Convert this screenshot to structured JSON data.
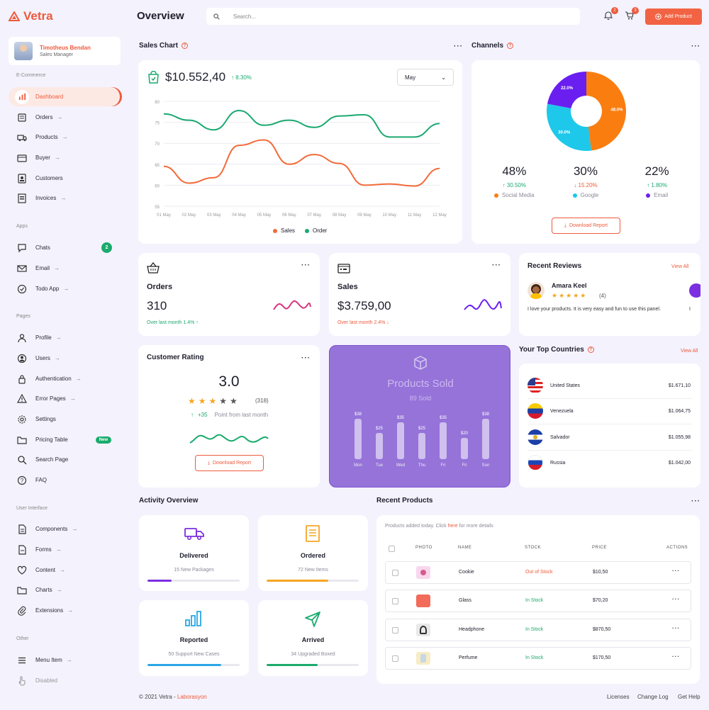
{
  "app": {
    "name": "Vetra"
  },
  "profile": {
    "name": "Timotheus Bendan",
    "role": "Sales Manager"
  },
  "sidebar": {
    "sections": [
      "E-Commerce",
      "Apps",
      "Pages",
      "User Interface",
      "Other"
    ],
    "ecommerce": [
      {
        "label": "Dashboard",
        "icon": "chart-bar-icon"
      },
      {
        "label": "Orders",
        "icon": "orders-icon"
      },
      {
        "label": "Products",
        "icon": "truck-icon"
      },
      {
        "label": "Buyer",
        "icon": "wallet-icon"
      },
      {
        "label": "Customers",
        "icon": "id-card-icon"
      },
      {
        "label": "Invoices",
        "icon": "invoice-icon"
      }
    ],
    "apps": [
      {
        "label": "Chats",
        "badge": "2"
      },
      {
        "label": "Email"
      },
      {
        "label": "Todo App"
      }
    ],
    "pages": [
      {
        "label": "Profile"
      },
      {
        "label": "Users"
      },
      {
        "label": "Authentication"
      },
      {
        "label": "Error Pages"
      },
      {
        "label": "Settings"
      },
      {
        "label": "Pricing Table",
        "badge": "New"
      },
      {
        "label": "Search Page"
      },
      {
        "label": "FAQ"
      }
    ],
    "ui": [
      {
        "label": "Components"
      },
      {
        "label": "Forms"
      },
      {
        "label": "Content"
      },
      {
        "label": "Charts"
      },
      {
        "label": "Extensions"
      }
    ],
    "other": [
      {
        "label": "Menu Item"
      },
      {
        "label": "Disabled"
      }
    ]
  },
  "header": {
    "title": "Overview",
    "search_placeholder": "Search...",
    "notif_count": "2",
    "cart_count": "3",
    "add_label": "Add Product"
  },
  "sales_chart": {
    "title": "Sales Chart",
    "amount": "$10.552,40",
    "change": "↑ 8.30%",
    "period": "May",
    "legend": [
      "Sales",
      "Order"
    ]
  },
  "channels": {
    "title": "Channels",
    "items": [
      {
        "pct": "48%",
        "change": "↑ 30.50%",
        "name": "Social Media",
        "color": "#fa7d10",
        "dir": "up"
      },
      {
        "pct": "30%",
        "change": "↓ 15.20%",
        "name": "Google",
        "color": "#1ec8ea",
        "dir": "down"
      },
      {
        "pct": "22%",
        "change": "↑ 1.80%",
        "name": "Email",
        "color": "#6a1ff0",
        "dir": "up"
      }
    ],
    "slice_labels": [
      "48.0%",
      "30.0%",
      "22.0%"
    ],
    "download": "Download Report"
  },
  "orders": {
    "title": "Orders",
    "value": "310",
    "sub": "Over last month 1.4% ↑"
  },
  "sales": {
    "title": "Sales",
    "value": "$3.759,00",
    "sub": "Over last month 2.4% ↓"
  },
  "reviews": {
    "title": "Recent Reviews",
    "view_all": "View All",
    "name": "Amara Keel",
    "count": "(4)",
    "text": "I love your products. It is very easy and fun to use this panel.",
    "extra": "I"
  },
  "rating": {
    "title": "Customer Rating",
    "value": "3.0",
    "count": "(318)",
    "delta": "+35",
    "delta_text": "Point from last month",
    "download": "Download Report",
    "stars": 3
  },
  "products_sold": {
    "title": "Products Sold",
    "sub": "89 Sold"
  },
  "countries": {
    "title": "Your Top Countries",
    "view_all": "View All",
    "rows": [
      {
        "name": "United States",
        "value": "$1.671,10"
      },
      {
        "name": "Venezuela",
        "value": "$1.064,75"
      },
      {
        "name": "Salvador",
        "value": "$1.055,98"
      },
      {
        "name": "Russia",
        "value": "$1.042,00"
      }
    ]
  },
  "activity": {
    "title": "Activity Overview",
    "items": [
      {
        "title": "Delivered",
        "sub": "15 New Packages",
        "progress": 0.26,
        "color": "#7b2fe0"
      },
      {
        "title": "Ordered",
        "sub": "72 New Items",
        "progress": 0.67,
        "color": "#f5a623"
      },
      {
        "title": "Reported",
        "sub": "50 Support New Cases",
        "progress": 0.8,
        "color": "#2aa7e6"
      },
      {
        "title": "Arrived",
        "sub": "34 Upgraded Boxed",
        "progress": 0.55,
        "color": "#1aab6d"
      }
    ]
  },
  "recent_products": {
    "title": "Recent Products",
    "note_pre": "Products added today. Click ",
    "note_link": "here",
    "note_post": " for more details",
    "headers": [
      "PHOTO",
      "NAME",
      "STOCK",
      "PRICE",
      "ACTIONS"
    ],
    "rows": [
      {
        "name": "Cookie",
        "stock": "Out of Stock",
        "price": "$10,50"
      },
      {
        "name": "Glass",
        "stock": "In Stock",
        "price": "$70,20"
      },
      {
        "name": "Headphone",
        "stock": "In Stock",
        "price": "$870,50"
      },
      {
        "name": "Perfume",
        "stock": "In Stock",
        "price": "$170,50"
      }
    ]
  },
  "footer": {
    "copy": "© 2021 Vetra - ",
    "brand": "Laborasyon",
    "links": [
      "Licenses",
      "Change Log",
      "Get Help"
    ]
  },
  "chart_data": [
    {
      "type": "line",
      "x": [
        "01 May",
        "02 May",
        "03 May",
        "04 May",
        "05 May",
        "06 May",
        "07 May",
        "08 May",
        "09 May",
        "10 May",
        "11 May",
        "12 May"
      ],
      "ylim": [
        55,
        80
      ],
      "yticks": [
        80,
        75,
        70,
        65,
        60,
        55
      ],
      "series": [
        {
          "name": "Sales",
          "color": "#f26b3a",
          "values": [
            64.5,
            60.5,
            61.8,
            69.5,
            70.8,
            65,
            67.3,
            65.2,
            60,
            60.3,
            59.8,
            64
          ]
        },
        {
          "name": "Order",
          "color": "#1aa970",
          "values": [
            77,
            75.5,
            73.2,
            77.8,
            74.3,
            75.5,
            73.8,
            76.5,
            76.8,
            71.5,
            71.5,
            74.7
          ]
        }
      ]
    },
    {
      "type": "pie",
      "labels": [
        "Social Media",
        "Google",
        "Email"
      ],
      "values": [
        48,
        30,
        22
      ],
      "colors": [
        "#fa7d10",
        "#1ec8ea",
        "#6a1ff0"
      ]
    },
    {
      "type": "bar",
      "categories": [
        "Mon",
        "Tue",
        "Wed",
        "Thu",
        "Fri",
        "Fri",
        "Sun"
      ],
      "values": [
        38,
        25,
        35,
        25,
        35,
        20,
        38
      ],
      "labels": [
        "$38",
        "$25",
        "$35",
        "$25",
        "$35",
        "$20",
        "$38"
      ]
    }
  ]
}
